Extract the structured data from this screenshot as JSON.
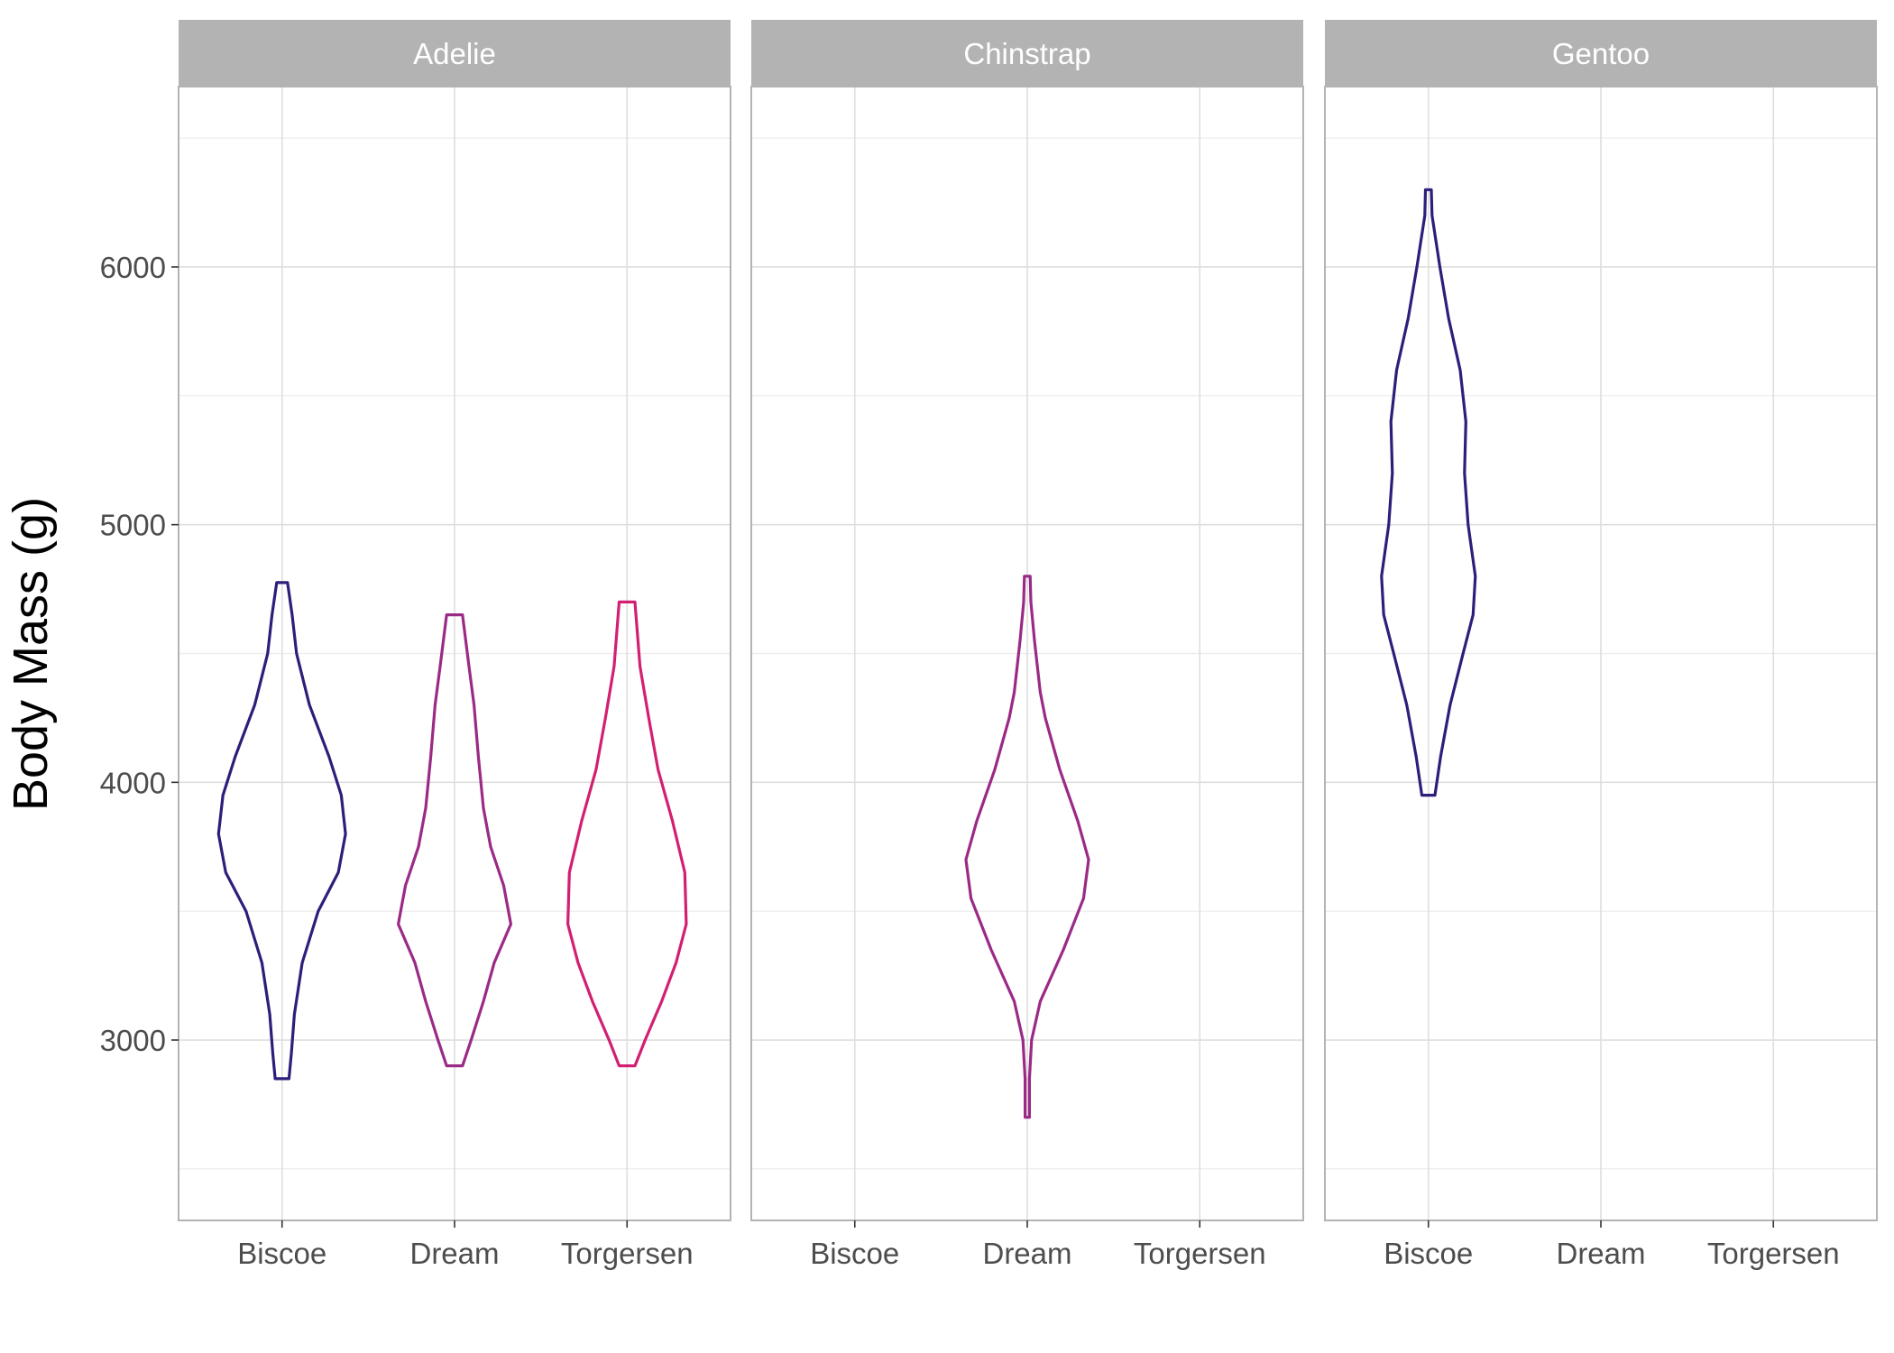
{
  "chart_data": {
    "type": "violin",
    "facet_by": "species",
    "facets": [
      "Adelie",
      "Chinstrap",
      "Gentoo"
    ],
    "categories": [
      "Biscoe",
      "Dream",
      "Torgersen"
    ],
    "xlabel": "",
    "ylabel": "Body Mass (g)",
    "ylim": [
      2300,
      6700
    ],
    "yticks": [
      3000,
      4000,
      5000,
      6000
    ],
    "grid": true,
    "legend": "none",
    "colors": {
      "Biscoe": "#2d1e7a",
      "Dream": "#9b2a86",
      "Torgersen": "#d21f72",
      "strip_bg": "#b3b3b3",
      "grid": "#dedede",
      "panel_border": "#b3b3b3"
    },
    "violins": [
      {
        "facet": "Adelie",
        "category": "Biscoe",
        "min": 2850,
        "max": 4775,
        "profile": [
          [
            2850,
            0.095
          ],
          [
            2950,
            0.13
          ],
          [
            3100,
            0.17
          ],
          [
            3300,
            0.28
          ],
          [
            3500,
            0.5
          ],
          [
            3650,
            0.78
          ],
          [
            3800,
            0.88
          ],
          [
            3950,
            0.82
          ],
          [
            4100,
            0.65
          ],
          [
            4300,
            0.38
          ],
          [
            4500,
            0.2
          ],
          [
            4650,
            0.14
          ],
          [
            4775,
            0.075
          ]
        ]
      },
      {
        "facet": "Adelie",
        "category": "Dream",
        "min": 2900,
        "max": 4650,
        "profile": [
          [
            2900,
            0.11
          ],
          [
            3000,
            0.23
          ],
          [
            3150,
            0.4
          ],
          [
            3300,
            0.55
          ],
          [
            3450,
            0.78
          ],
          [
            3600,
            0.68
          ],
          [
            3750,
            0.5
          ],
          [
            3900,
            0.4
          ],
          [
            4100,
            0.33
          ],
          [
            4300,
            0.27
          ],
          [
            4450,
            0.2
          ],
          [
            4650,
            0.11
          ]
        ]
      },
      {
        "facet": "Adelie",
        "category": "Torgersen",
        "min": 2900,
        "max": 4700,
        "profile": [
          [
            2900,
            0.11
          ],
          [
            3000,
            0.25
          ],
          [
            3150,
            0.48
          ],
          [
            3300,
            0.68
          ],
          [
            3450,
            0.82
          ],
          [
            3650,
            0.8
          ],
          [
            3850,
            0.63
          ],
          [
            4050,
            0.43
          ],
          [
            4250,
            0.3
          ],
          [
            4450,
            0.18
          ],
          [
            4700,
            0.11
          ]
        ]
      },
      {
        "facet": "Chinstrap",
        "category": "Dream",
        "min": 2700,
        "max": 4800,
        "profile": [
          [
            2700,
            0.03
          ],
          [
            2850,
            0.03
          ],
          [
            3000,
            0.06
          ],
          [
            3150,
            0.18
          ],
          [
            3350,
            0.5
          ],
          [
            3550,
            0.78
          ],
          [
            3700,
            0.85
          ],
          [
            3850,
            0.7
          ],
          [
            4050,
            0.45
          ],
          [
            4250,
            0.25
          ],
          [
            4350,
            0.18
          ],
          [
            4550,
            0.1
          ],
          [
            4700,
            0.05
          ],
          [
            4800,
            0.04
          ]
        ]
      },
      {
        "facet": "Gentoo",
        "category": "Biscoe",
        "min": 3950,
        "max": 6300,
        "profile": [
          [
            3950,
            0.09
          ],
          [
            4100,
            0.17
          ],
          [
            4300,
            0.3
          ],
          [
            4500,
            0.48
          ],
          [
            4650,
            0.62
          ],
          [
            4800,
            0.65
          ],
          [
            5000,
            0.55
          ],
          [
            5200,
            0.5
          ],
          [
            5400,
            0.52
          ],
          [
            5600,
            0.44
          ],
          [
            5800,
            0.28
          ],
          [
            6000,
            0.16
          ],
          [
            6200,
            0.05
          ],
          [
            6300,
            0.04
          ]
        ]
      }
    ]
  }
}
